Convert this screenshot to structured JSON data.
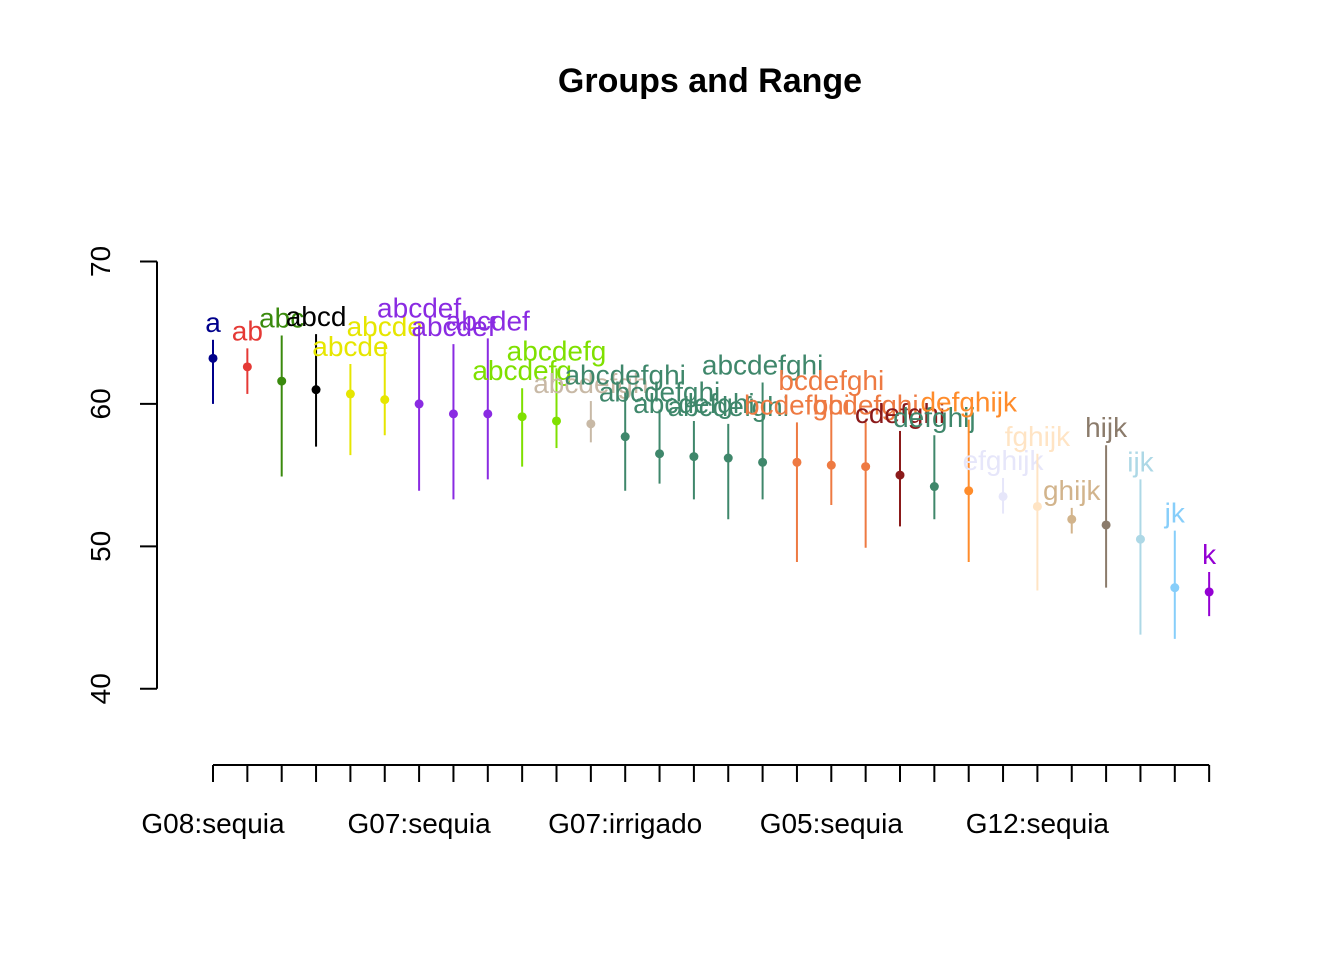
{
  "chart_data": {
    "type": "scatter",
    "title": "Groups and Range",
    "xlabel": "",
    "ylabel": "",
    "ylim": [
      35,
      72.7
    ],
    "y_ticks": [
      40,
      50,
      60,
      70
    ],
    "x_tick_labels": [
      "G08:sequia",
      "G07:sequia",
      "G07:irrigado",
      "G05:sequia",
      "G12:sequia"
    ],
    "x_tick_label_every": 6,
    "points": [
      {
        "mean": 63.2,
        "low": 60.0,
        "high": 64.5,
        "group": "a",
        "color": "#00008b"
      },
      {
        "mean": 62.6,
        "low": 60.7,
        "high": 63.9,
        "group": "ab",
        "color": "#e53935"
      },
      {
        "mean": 61.6,
        "low": 54.9,
        "high": 64.8,
        "group": "abc",
        "color": "#3a8a0d"
      },
      {
        "mean": 61.0,
        "low": 57.0,
        "high": 64.9,
        "group": "abcd",
        "color": "#000000"
      },
      {
        "mean": 60.7,
        "low": 56.4,
        "high": 62.8,
        "group": "abcde",
        "color": "#e6e600"
      },
      {
        "mean": 60.3,
        "low": 57.8,
        "high": 64.2,
        "group": "abcde",
        "color": "#e6e600"
      },
      {
        "mean": 60.0,
        "low": 53.9,
        "high": 65.5,
        "group": "abcdef",
        "color": "#8a2be2"
      },
      {
        "mean": 59.3,
        "low": 53.3,
        "high": 64.2,
        "group": "abcdef",
        "color": "#8a2be2"
      },
      {
        "mean": 59.3,
        "low": 54.7,
        "high": 64.6,
        "group": "abcdef",
        "color": "#8a2be2"
      },
      {
        "mean": 59.1,
        "low": 55.6,
        "high": 61.1,
        "group": "abcdefg",
        "color": "#7fe000"
      },
      {
        "mean": 58.8,
        "low": 56.9,
        "high": 62.5,
        "group": "abcdefg",
        "color": "#7fe000"
      },
      {
        "mean": 58.6,
        "low": 57.3,
        "high": 60.2,
        "group": "abcdefgh",
        "color": "#c8b9a6"
      },
      {
        "mean": 57.7,
        "low": 53.9,
        "high": 60.8,
        "group": "abcdefghi",
        "color": "#3f876b"
      },
      {
        "mean": 56.5,
        "low": 54.4,
        "high": 59.6,
        "group": "abcdefghi",
        "color": "#3f876b"
      },
      {
        "mean": 56.3,
        "low": 53.3,
        "high": 58.8,
        "group": "abcdefghi",
        "color": "#3f876b"
      },
      {
        "mean": 56.2,
        "low": 51.9,
        "high": 58.6,
        "group": "abcdefghi",
        "color": "#3f876b"
      },
      {
        "mean": 55.9,
        "low": 53.3,
        "high": 61.5,
        "group": "abcdefghi",
        "color": "#3f876b"
      },
      {
        "mean": 55.9,
        "low": 48.9,
        "high": 58.7,
        "group": "bcdefghi",
        "color": "#ee7a42"
      },
      {
        "mean": 55.7,
        "low": 52.9,
        "high": 60.4,
        "group": "bcdefghi",
        "color": "#ee7a42"
      },
      {
        "mean": 55.6,
        "low": 49.9,
        "high": 58.7,
        "group": "bcdefghi",
        "color": "#ee7a42"
      },
      {
        "mean": 55.0,
        "low": 51.4,
        "high": 58.1,
        "group": "cdefghi",
        "color": "#8b1a1a"
      },
      {
        "mean": 54.2,
        "low": 51.9,
        "high": 57.8,
        "group": "defghij",
        "color": "#3f876b"
      },
      {
        "mean": 53.9,
        "low": 48.9,
        "high": 58.9,
        "group": "defghijk",
        "color": "#ff8c2b"
      },
      {
        "mean": 53.5,
        "low": 52.3,
        "high": 54.8,
        "group": "efghijk",
        "color": "#e6e6fa"
      },
      {
        "mean": 52.8,
        "low": 46.9,
        "high": 56.5,
        "group": "fghijk",
        "color": "#ffe4c4"
      },
      {
        "mean": 51.9,
        "low": 50.9,
        "high": 52.7,
        "group": "ghijk",
        "color": "#d2b48c"
      },
      {
        "mean": 51.5,
        "low": 47.1,
        "high": 57.1,
        "group": "hijk",
        "color": "#8b7b6b"
      },
      {
        "mean": 50.5,
        "low": 43.8,
        "high": 54.7,
        "group": "ijk",
        "color": "#add8e6"
      },
      {
        "mean": 47.1,
        "low": 43.5,
        "high": 51.1,
        "group": "jk",
        "color": "#87cefa"
      },
      {
        "mean": 46.8,
        "low": 45.1,
        "high": 48.2,
        "group": "k",
        "color": "#9400d3"
      }
    ]
  }
}
